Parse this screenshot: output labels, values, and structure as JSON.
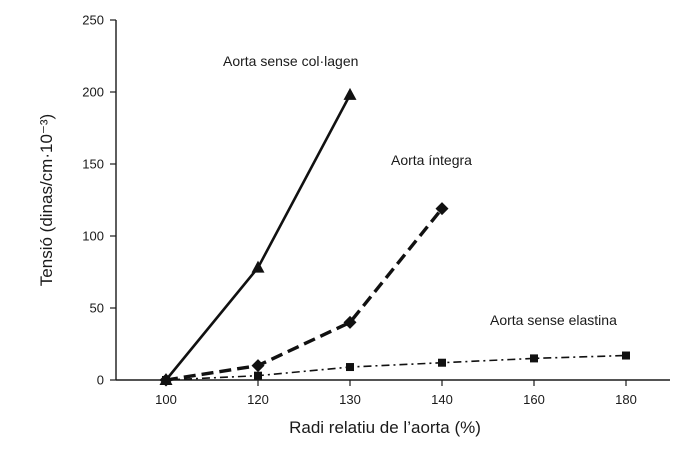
{
  "chart_data": {
    "type": "line",
    "title": "",
    "xlabel": "Radi relatiu de l’aorta (%)",
    "ylabel": "Tensió (dinas/cm·10⁻³)",
    "x_ticks": [
      100,
      120,
      130,
      140,
      160,
      180
    ],
    "y_ticks": [
      0,
      50,
      100,
      150,
      200,
      250
    ],
    "ylim": [
      0,
      250
    ],
    "grid": false,
    "legend": "none",
    "series": [
      {
        "name": "Aorta sense col·lagen",
        "marker": "triangle",
        "line_style": "solid",
        "x": [
          100,
          120,
          130
        ],
        "y": [
          0,
          78,
          198
        ]
      },
      {
        "name": "Aorta íntegra",
        "marker": "diamond",
        "line_style": "dashed",
        "x": [
          100,
          120,
          130,
          140
        ],
        "y": [
          0,
          10,
          40,
          119
        ]
      },
      {
        "name": "Aorta sense elastina",
        "marker": "square",
        "line_style": "dash-dot",
        "x": [
          100,
          120,
          130,
          140,
          160,
          180
        ],
        "y": [
          0,
          3,
          9,
          12,
          15,
          17
        ]
      }
    ]
  }
}
